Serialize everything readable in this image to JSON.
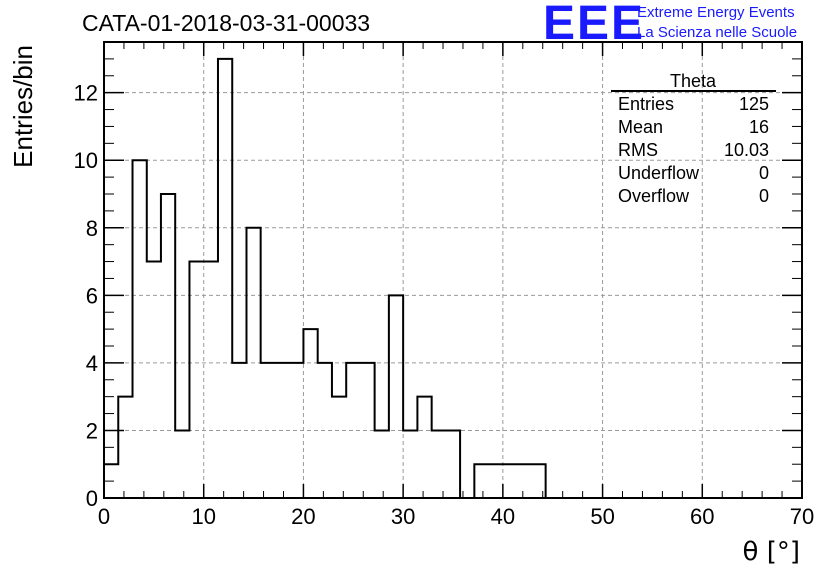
{
  "header": {
    "title": "CATA-01-2018-03-31-00033",
    "logo_text": "EEE",
    "logo_line1": "Extreme Energy Events",
    "logo_line2": "La Scienza nelle Scuole"
  },
  "colors": {
    "logo": "#1a1aff",
    "histogram": "#000000",
    "grid": "#9a9a9a"
  },
  "chart_data": {
    "type": "bar",
    "histogram_style": "step",
    "title": "CATA-01-2018-03-31-00033",
    "xlabel": "θ [°]",
    "ylabel": "Entries/bin",
    "xlim": [
      0,
      70
    ],
    "ylim": [
      0,
      13.5
    ],
    "x_ticks": [
      "0",
      "10",
      "20",
      "30",
      "40",
      "50",
      "60",
      "70"
    ],
    "y_ticks": [
      "0",
      "2",
      "4",
      "6",
      "8",
      "10",
      "12"
    ],
    "grid": true,
    "bins": {
      "edges": [
        0,
        1.43,
        2.86,
        4.29,
        5.71,
        7.14,
        8.57,
        10,
        11.43,
        12.86,
        14.29,
        15.71,
        17.14,
        18.57,
        20,
        21.43,
        22.86,
        24.29,
        25.71,
        27.14,
        28.57,
        30,
        31.43,
        32.86,
        34.29,
        35.71,
        37.14,
        38.57,
        40,
        41.43,
        42.86,
        44.29
      ],
      "counts": [
        1,
        3,
        10,
        7,
        9,
        2,
        7,
        7,
        13,
        4,
        8,
        4,
        4,
        4,
        5,
        4,
        3,
        4,
        4,
        2,
        6,
        2,
        3,
        2,
        2,
        0,
        1,
        1,
        1,
        1,
        1
      ]
    },
    "stats_box": {
      "name": "Theta",
      "rows": [
        {
          "label": "Entries",
          "value": "125"
        },
        {
          "label": "Mean",
          "value": "16"
        },
        {
          "label": "RMS",
          "value": "10.03"
        },
        {
          "label": "Underflow",
          "value": "0"
        },
        {
          "label": "Overflow",
          "value": "0"
        }
      ],
      "placement": "top-right"
    }
  }
}
